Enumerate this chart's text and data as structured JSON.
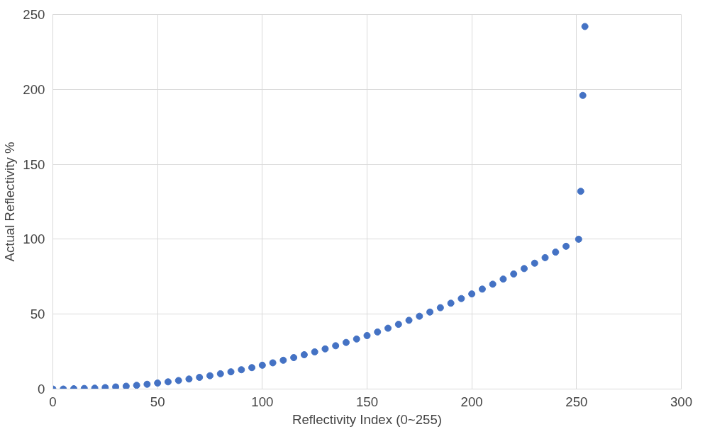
{
  "chart_data": {
    "type": "scatter",
    "xlabel": "Reflectivity Index (0~255)",
    "ylabel": "Actual Reflectivity %",
    "x": [
      0,
      5,
      10,
      15,
      20,
      25,
      30,
      35,
      40,
      45,
      50,
      55,
      60,
      65,
      70,
      75,
      80,
      85,
      90,
      95,
      100,
      105,
      110,
      115,
      120,
      125,
      130,
      135,
      140,
      145,
      150,
      155,
      160,
      165,
      170,
      175,
      180,
      185,
      190,
      195,
      200,
      205,
      210,
      215,
      220,
      225,
      230,
      235,
      240,
      245,
      251,
      252,
      253,
      254
    ],
    "series": [
      {
        "color": "#4472c4",
        "values": [
          0,
          0.0,
          0.2,
          0.4,
          0.6,
          1.0,
          1.4,
          1.9,
          2.5,
          3.2,
          4.0,
          4.8,
          5.7,
          6.7,
          7.8,
          8.9,
          10.2,
          11.5,
          12.9,
          14.3,
          15.9,
          17.5,
          19.2,
          21.0,
          22.9,
          24.8,
          26.8,
          28.9,
          31.1,
          33.4,
          35.7,
          38.1,
          40.6,
          43.2,
          45.9,
          48.6,
          51.4,
          54.3,
          57.3,
          60.4,
          63.5,
          66.7,
          70.0,
          73.4,
          76.8,
          80.4,
          84.0,
          87.7,
          91.4,
          95.3,
          100,
          132,
          196,
          242
        ]
      }
    ],
    "xlim": [
      0,
      300
    ],
    "xticks": [
      0,
      50,
      100,
      150,
      200,
      250,
      300
    ],
    "ylim": [
      0,
      250
    ],
    "yticks": [
      0,
      50,
      100,
      150,
      200,
      250
    ],
    "grid": true,
    "marker": "circle"
  }
}
